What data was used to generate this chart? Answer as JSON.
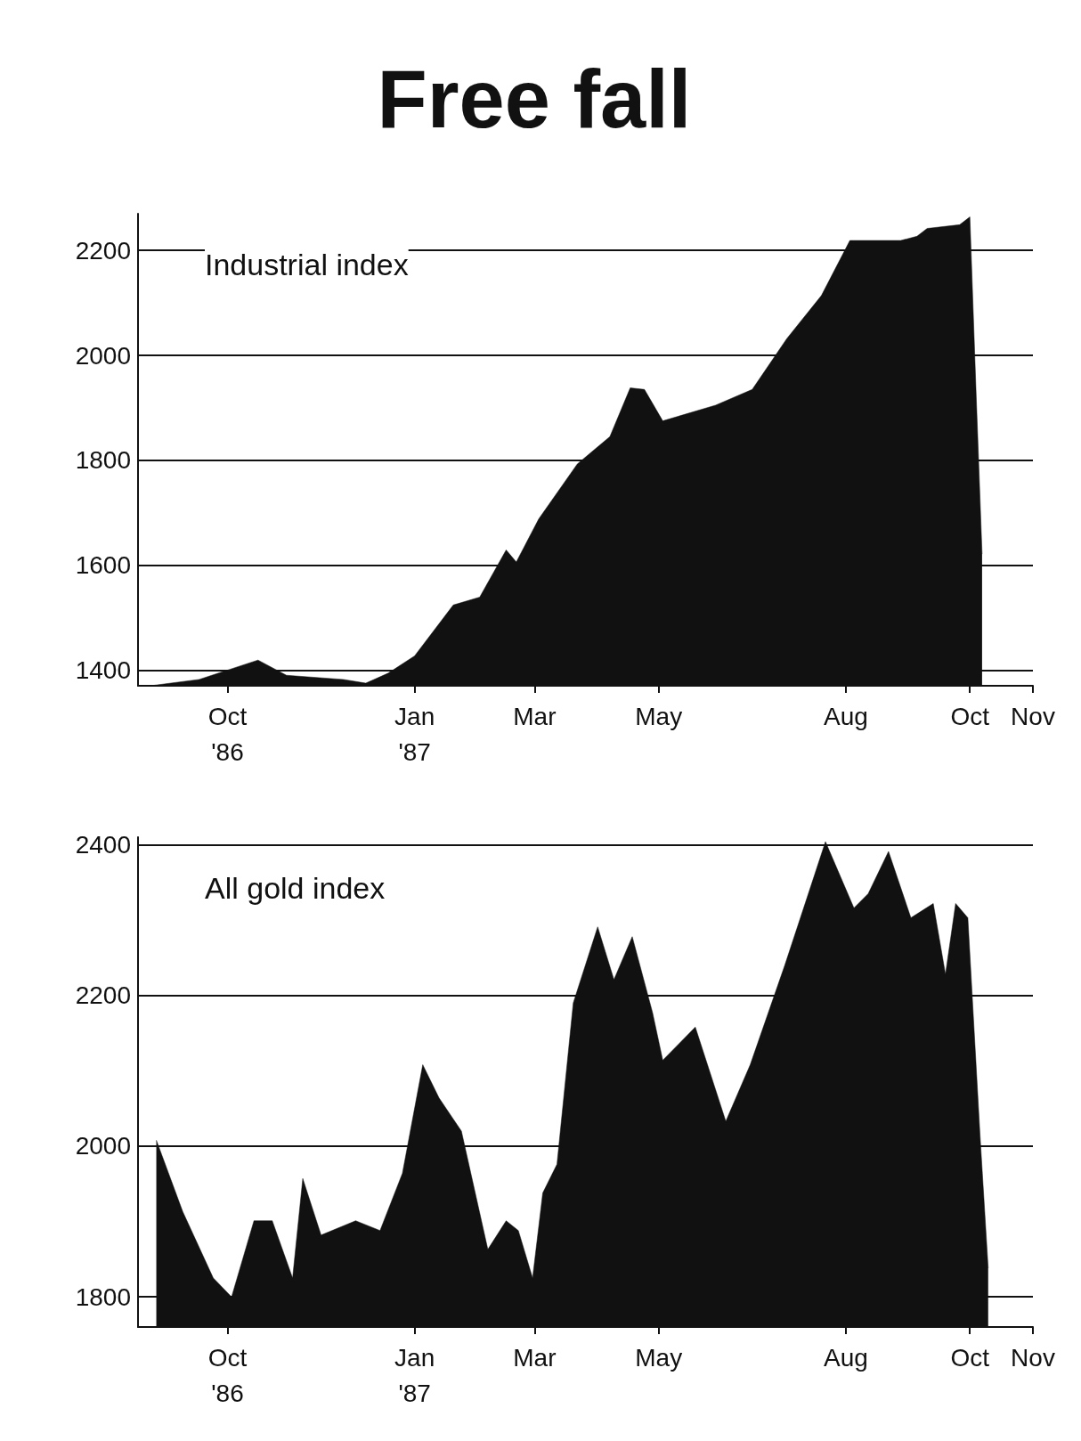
{
  "chart_data": [
    {
      "type": "area",
      "title": "Free fall",
      "annotations": [
        "Industrial index"
      ],
      "x": [
        "1986-08-24",
        "1986-09-17",
        "1986-10-16",
        "1986-10-30",
        "1986-11-27",
        "1986-12-08",
        "1986-12-19",
        "1987-01-01",
        "1987-01-20",
        "1987-02-02",
        "1987-02-15",
        "1987-02-20",
        "1987-03-03",
        "1987-03-22",
        "1987-04-07",
        "1987-04-17",
        "1987-04-24",
        "1987-05-03",
        "1987-05-29",
        "1987-06-16",
        "1987-07-03",
        "1987-07-20",
        "1987-08-03",
        "1987-08-09",
        "1987-08-28",
        "1987-09-05",
        "1987-09-10",
        "1987-09-26",
        "1987-10-01",
        "1987-10-04",
        "1987-10-07"
      ],
      "series": [
        {
          "color": "#111111",
          "values": [
            1370,
            1382,
            1419,
            1390,
            1382,
            1375,
            1394,
            1427,
            1524,
            1539,
            1629,
            1606,
            1688,
            1793,
            1845,
            1938,
            1935,
            1875,
            1905,
            1935,
            2032,
            2114,
            2219,
            2219,
            2219,
            2227,
            2242,
            2249,
            2264,
            1935,
            1621
          ]
        }
      ],
      "xlim": [
        "1986-08-18",
        "1987-11-01"
      ],
      "xticks": [
        {
          "value": "1986-10-01",
          "label": "Oct\n'86"
        },
        {
          "value": "1987-01-01",
          "label": "Jan\n'87"
        },
        {
          "value": "1987-03-01",
          "label": "Mar"
        },
        {
          "value": "1987-05-01",
          "label": "May"
        },
        {
          "value": "1987-08-01",
          "label": "Aug"
        },
        {
          "value": "1987-10-01",
          "label": "Oct"
        },
        {
          "value": "1987-11-01",
          "label": "Nov"
        }
      ],
      "ylim": [
        1370,
        2270
      ],
      "yticks": [
        1400,
        1600,
        1800,
        2000,
        2200
      ],
      "grid": "y"
    },
    {
      "type": "area",
      "annotations": [
        "All gold index"
      ],
      "x": [
        "1986-08-27",
        "1986-09-09",
        "1986-09-24",
        "1986-10-03",
        "1986-10-14",
        "1986-10-23",
        "1986-11-02",
        "1986-11-07",
        "1986-11-16",
        "1986-12-03",
        "1986-12-15",
        "1986-12-26",
        "1987-01-05",
        "1987-01-13",
        "1987-01-24",
        "1987-02-06",
        "1987-02-15",
        "1987-02-21",
        "1987-02-28",
        "1987-03-05",
        "1987-03-12",
        "1987-03-20",
        "1987-04-01",
        "1987-04-09",
        "1987-04-18",
        "1987-04-28",
        "1987-05-03",
        "1987-05-19",
        "1987-06-03",
        "1987-06-15",
        "1987-07-02",
        "1987-07-22",
        "1987-08-05",
        "1987-08-12",
        "1987-08-22",
        "1987-09-02",
        "1987-09-13",
        "1987-09-19",
        "1987-09-24",
        "1987-09-30",
        "1987-10-06",
        "1987-10-10"
      ],
      "series": [
        {
          "color": "#111111",
          "values": [
            2008,
            1913,
            1825,
            1800,
            1901,
            1901,
            1825,
            1957,
            1882,
            1901,
            1888,
            1964,
            2108,
            2064,
            2020,
            1863,
            1901,
            1888,
            1825,
            1938,
            1976,
            2190,
            2291,
            2221,
            2278,
            2177,
            2114,
            2158,
            2033,
            2108,
            2240,
            2404,
            2316,
            2335,
            2391,
            2303,
            2322,
            2228,
            2322,
            2303,
            2014,
            1838
          ]
        }
      ],
      "xlim": [
        "1986-08-18",
        "1987-11-01"
      ],
      "xticks": [
        {
          "value": "1986-10-01",
          "label": "Oct\n'86"
        },
        {
          "value": "1987-01-01",
          "label": "Jan\n'87"
        },
        {
          "value": "1987-03-01",
          "label": "Mar"
        },
        {
          "value": "1987-05-01",
          "label": "May"
        },
        {
          "value": "1987-08-01",
          "label": "Aug"
        },
        {
          "value": "1987-10-01",
          "label": "Oct"
        },
        {
          "value": "1987-11-01",
          "label": "Nov"
        }
      ],
      "ylim": [
        1760,
        2410
      ],
      "yticks": [
        1800,
        2000,
        2200,
        2400
      ],
      "grid": "y"
    }
  ]
}
